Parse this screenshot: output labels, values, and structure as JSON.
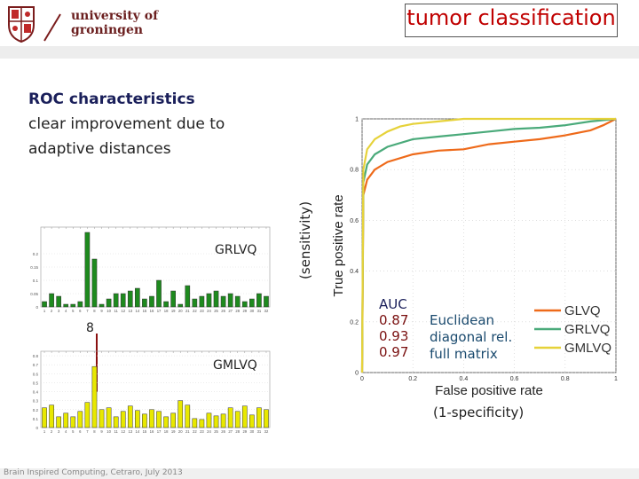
{
  "header": {
    "university_line1": "university of",
    "university_line2": "groningen",
    "slide_title": "tumor classification"
  },
  "text": {
    "heading": "ROC characteristics",
    "line1": "clear improvement due to",
    "line2": "adaptive distances"
  },
  "bar_charts": {
    "grlvq_label": "GRLVQ",
    "gmlvq_label": "GMLVQ",
    "marker_label": "8",
    "grlvq_color": "#1e8a1e",
    "gmlvq_color": "#e8e800"
  },
  "roc": {
    "sensitivity_label": "(sensitivity)",
    "specificity_label": "(1-specificity)",
    "auc_heading": "AUC",
    "auc_values": [
      "0.87",
      "0.93",
      "0.97"
    ],
    "descriptions": [
      "Euclidean",
      "diagonal rel.",
      "full matrix"
    ]
  },
  "footer": {
    "text": "Brain Inspired Computing, Cetraro, July 2013"
  },
  "chart_data": [
    {
      "type": "bar",
      "categories": [
        "1",
        "2",
        "3",
        "4",
        "5",
        "6",
        "7",
        "8",
        "9",
        "10",
        "11",
        "12",
        "13",
        "14",
        "15",
        "16",
        "17",
        "18",
        "19",
        "20",
        "21",
        "22",
        "23",
        "24",
        "25",
        "26",
        "27",
        "28",
        "29",
        "30",
        "31",
        "32"
      ],
      "values": [
        0.02,
        0.05,
        0.04,
        0.01,
        0.01,
        0.02,
        0.28,
        0.18,
        0.01,
        0.03,
        0.05,
        0.05,
        0.06,
        0.07,
        0.03,
        0.04,
        0.1,
        0.02,
        0.06,
        0.01,
        0.08,
        0.03,
        0.04,
        0.05,
        0.06,
        0.04,
        0.05,
        0.04,
        0.02,
        0.03,
        0.05,
        0.04
      ],
      "yticks": [
        "0",
        "0.05",
        "0.1",
        "0.15",
        "0.2"
      ],
      "ylim": [
        0,
        0.3
      ]
    },
    {
      "type": "bar",
      "categories": [
        "1",
        "2",
        "3",
        "4",
        "5",
        "6",
        "7",
        "8",
        "9",
        "10",
        "11",
        "12",
        "13",
        "14",
        "15",
        "16",
        "17",
        "18",
        "19",
        "20",
        "21",
        "22",
        "23",
        "24",
        "25",
        "26",
        "27",
        "28",
        "29",
        "30",
        "31",
        "32"
      ],
      "values": [
        0.22,
        0.25,
        0.12,
        0.16,
        0.12,
        0.18,
        0.28,
        0.68,
        0.2,
        0.22,
        0.12,
        0.18,
        0.24,
        0.19,
        0.15,
        0.2,
        0.18,
        0.12,
        0.16,
        0.3,
        0.25,
        0.1,
        0.09,
        0.16,
        0.13,
        0.15,
        0.22,
        0.18,
        0.24,
        0.14,
        0.22,
        0.2
      ],
      "yticks": [
        "0",
        "0.1",
        "0.2",
        "0.3",
        "0.4",
        "0.5",
        "0.6",
        "0.7",
        "0.8"
      ],
      "ylim": [
        0,
        0.85
      ]
    },
    {
      "type": "line",
      "xlabel": "False positive rate",
      "ylabel": "True positive rate",
      "xlim": [
        0,
        1
      ],
      "ylim": [
        0,
        1
      ],
      "xticks": [
        "0",
        "0.2",
        "0.4",
        "0.6",
        "0.8",
        "1"
      ],
      "yticks": [
        "0",
        "0.2",
        "0.4",
        "0.6",
        "0.8",
        "1"
      ],
      "legend_position": "bottom-right",
      "series": [
        {
          "name": "GLVQ",
          "color": "#ee6a1a",
          "x": [
            0,
            0.005,
            0.02,
            0.05,
            0.1,
            0.2,
            0.3,
            0.4,
            0.5,
            0.6,
            0.7,
            0.8,
            0.9,
            0.95,
            1
          ],
          "y": [
            0,
            0.7,
            0.76,
            0.8,
            0.83,
            0.86,
            0.875,
            0.88,
            0.9,
            0.91,
            0.92,
            0.935,
            0.955,
            0.975,
            1
          ]
        },
        {
          "name": "GRLVQ",
          "color": "#4aaa7a",
          "x": [
            0,
            0.005,
            0.02,
            0.05,
            0.1,
            0.2,
            0.3,
            0.4,
            0.5,
            0.6,
            0.7,
            0.8,
            0.9,
            1
          ],
          "y": [
            0,
            0.75,
            0.82,
            0.86,
            0.89,
            0.92,
            0.93,
            0.94,
            0.95,
            0.96,
            0.965,
            0.975,
            0.99,
            1
          ]
        },
        {
          "name": "GMLVQ",
          "color": "#e6d23a",
          "x": [
            0,
            0.005,
            0.02,
            0.05,
            0.1,
            0.15,
            0.2,
            0.3,
            0.4,
            0.5,
            0.6,
            0.8,
            1
          ],
          "y": [
            0,
            0.8,
            0.88,
            0.92,
            0.95,
            0.97,
            0.98,
            0.99,
            1,
            1,
            1,
            1,
            1
          ]
        }
      ]
    }
  ]
}
